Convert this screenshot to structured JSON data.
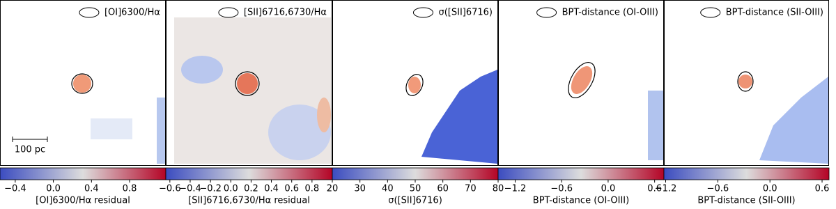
{
  "chart_data": [
    {
      "type": "heatmap",
      "legend_label": "[OI]6300/Hα",
      "colorbar_label": "[OI]6300/Hα residual",
      "scale_bar": "100 pc",
      "colormap": [
        "#3b4cc0",
        "#dddddd",
        "#b40426"
      ],
      "clim": [
        -0.56,
        1.18
      ],
      "cticks": [
        {
          "value": -0.4,
          "label": "−0.4"
        },
        {
          "value": 0,
          "label": "0.0"
        },
        {
          "value": 0.4,
          "label": "0.4"
        },
        {
          "value": 0.8,
          "label": "0.8"
        }
      ]
    },
    {
      "type": "heatmap",
      "legend_label": "[SII]6716,6730/Hα",
      "colorbar_label": "[SII]6716,6730/Hα residual",
      "colormap": [
        "#3b4cc0",
        "#dddddd",
        "#b40426"
      ],
      "clim": [
        -0.64,
        1.0
      ],
      "cticks": [
        {
          "value": -0.6,
          "label": "−0.6"
        },
        {
          "value": -0.4,
          "label": "−0.4"
        },
        {
          "value": -0.2,
          "label": "−0.2"
        },
        {
          "value": 0,
          "label": "0.0"
        },
        {
          "value": 0.2,
          "label": "0.2"
        },
        {
          "value": 0.4,
          "label": "0.4"
        },
        {
          "value": 0.6,
          "label": "0.6"
        },
        {
          "value": 0.8,
          "label": "0.8"
        }
      ]
    },
    {
      "type": "heatmap",
      "legend_label": "σ([SII]6716)",
      "colorbar_label": "σ([SII]6716)",
      "colormap": [
        "#3b4cc0",
        "#dddddd",
        "#b40426"
      ],
      "clim": [
        20,
        80
      ],
      "cticks": [
        20,
        30,
        40,
        50,
        60,
        70,
        80
      ]
    },
    {
      "type": "heatmap",
      "legend_label": "BPT-distance (OI-OIII)",
      "colorbar_label": "BPT-distance (OI-OIII)",
      "colormap": [
        "#3b4cc0",
        "#dddddd",
        "#b40426"
      ],
      "clim": [
        -1.42,
        0.72
      ],
      "cticks": [
        {
          "value": -1.2,
          "label": "−1.2"
        },
        {
          "value": -0.6,
          "label": "−0.6"
        },
        {
          "value": 0,
          "label": "0.0"
        },
        {
          "value": 0.6,
          "label": "0.6"
        }
      ]
    },
    {
      "type": "heatmap",
      "legend_label": "BPT-distance (SII-OIII)",
      "colorbar_label": "BPT-distance (SII-OIII)",
      "colormap": [
        "#3b4cc0",
        "#dddddd",
        "#b40426"
      ],
      "clim": [
        -1.22,
        0.68
      ],
      "cticks": [
        {
          "value": -1.2,
          "label": "−1.2"
        },
        {
          "value": -0.6,
          "label": "−0.6"
        },
        {
          "value": 0,
          "label": "0.0"
        },
        {
          "value": 0.6,
          "label": "0.6"
        }
      ]
    }
  ]
}
